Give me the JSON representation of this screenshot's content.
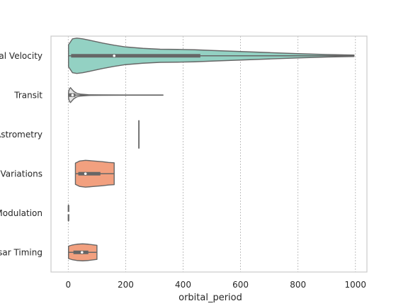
{
  "chart_data": {
    "type": "violin",
    "orientation": "horizontal",
    "title": "",
    "xlabel": "orbital_period",
    "ylabel": "",
    "xlim": [
      -60,
      1040
    ],
    "xticks": [
      0,
      200,
      400,
      600,
      800,
      1000
    ],
    "grid": {
      "x": true,
      "y": false,
      "style": "dotted"
    },
    "categories": [
      "al Velocity",
      "Transit",
      "Astrometry",
      "Variations",
      "Modulation",
      "sar Timing"
    ],
    "series": [
      {
        "category": "al Velocity",
        "color": "#93d1c3",
        "min": 1,
        "q1": 10,
        "median": 160,
        "q3": 460,
        "max": 995,
        "profile": [
          [
            1,
            0.62
          ],
          [
            15,
            0.96
          ],
          [
            30,
            1.0
          ],
          [
            50,
            0.96
          ],
          [
            80,
            0.86
          ],
          [
            120,
            0.72
          ],
          [
            160,
            0.6
          ],
          [
            200,
            0.5
          ],
          [
            260,
            0.42
          ],
          [
            320,
            0.37
          ],
          [
            380,
            0.36
          ],
          [
            440,
            0.34
          ],
          [
            500,
            0.3
          ],
          [
            600,
            0.24
          ],
          [
            700,
            0.18
          ],
          [
            800,
            0.12
          ],
          [
            900,
            0.07
          ],
          [
            960,
            0.05
          ],
          [
            995,
            0.04
          ]
        ]
      },
      {
        "category": "Transit",
        "color": "#e2e2e2",
        "min": 1,
        "q1": 3,
        "median": 15,
        "q3": 25,
        "max": 330,
        "profile": [
          [
            1,
            0.15
          ],
          [
            4,
            0.35
          ],
          [
            8,
            0.42
          ],
          [
            13,
            0.32
          ],
          [
            20,
            0.2
          ],
          [
            30,
            0.1
          ],
          [
            45,
            0.05
          ],
          [
            70,
            0.02
          ],
          [
            120,
            0.012
          ],
          [
            200,
            0.008
          ],
          [
            330,
            0.005
          ]
        ]
      },
      {
        "category": "Astrometry",
        "color": "#e78ac3",
        "min": 246,
        "q1": 246,
        "median": 246,
        "q3": 246,
        "max": 246,
        "profile": [
          [
            246,
            0.0
          ]
        ]
      },
      {
        "category": "Variations",
        "color": "#f2a07f",
        "min": 25,
        "q1": 35,
        "median": 60,
        "q3": 112,
        "max": 160,
        "profile": [
          [
            25,
            0.6
          ],
          [
            40,
            0.72
          ],
          [
            60,
            0.76
          ],
          [
            90,
            0.72
          ],
          [
            120,
            0.68
          ],
          [
            140,
            0.64
          ],
          [
            160,
            0.62
          ]
        ]
      },
      {
        "category": "Modulation",
        "color": "#93d1c3",
        "min": 1,
        "q1": 1,
        "median": 1,
        "q3": 1,
        "max": 1,
        "profile": [
          [
            0,
            0.42
          ],
          [
            1,
            0.45
          ],
          [
            2,
            0.42
          ]
        ]
      },
      {
        "category": "sar Timing",
        "color": "#f2a07f",
        "min": 1,
        "q1": 18,
        "median": 48,
        "q3": 70,
        "max": 100,
        "profile": [
          [
            1,
            0.35
          ],
          [
            15,
            0.42
          ],
          [
            30,
            0.46
          ],
          [
            50,
            0.48
          ],
          [
            70,
            0.46
          ],
          [
            90,
            0.42
          ],
          [
            100,
            0.4
          ]
        ]
      }
    ]
  }
}
